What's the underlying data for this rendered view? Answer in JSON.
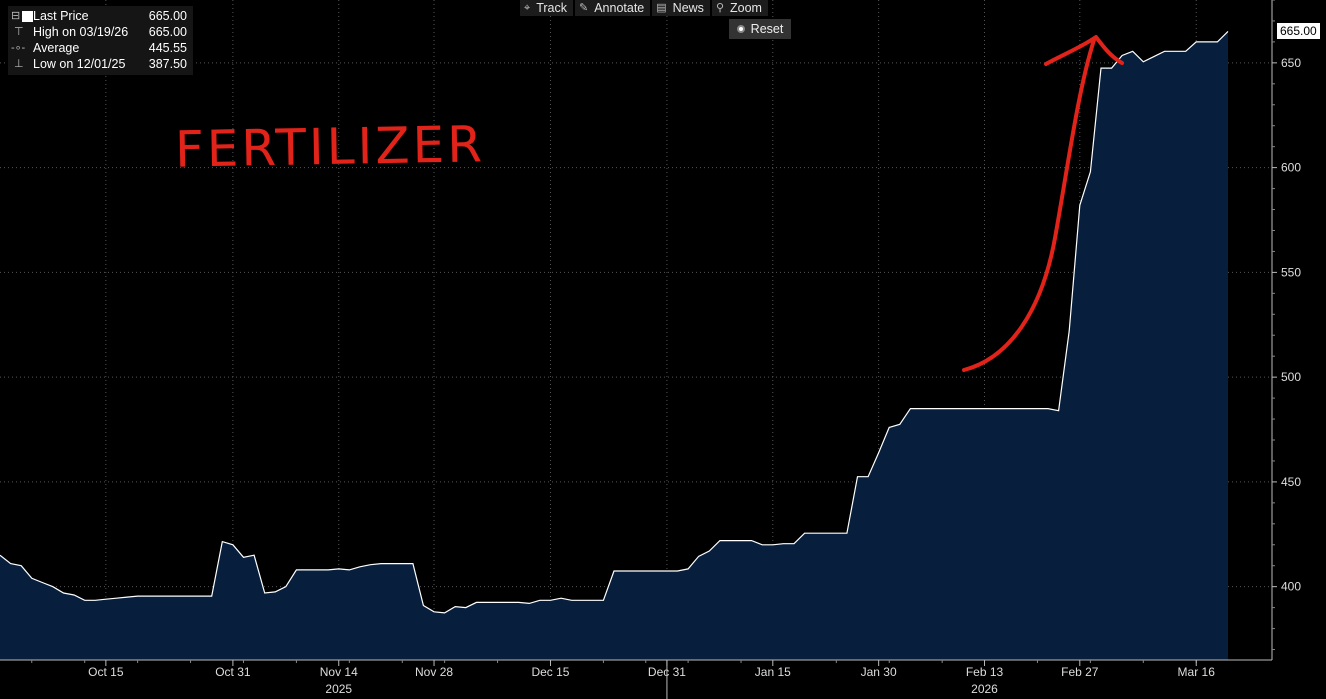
{
  "legend": {
    "rows": [
      {
        "icon": "white-square-icon",
        "label": "Last Price",
        "value": "665.00"
      },
      {
        "icon": "high-marker-icon",
        "label": "High on 03/19/26",
        "value": "665.00"
      },
      {
        "icon": "average-line-icon",
        "label": "Average",
        "value": "445.55"
      },
      {
        "icon": "low-marker-icon",
        "label": "Low on 12/01/25",
        "value": "387.50"
      }
    ]
  },
  "toolbar": {
    "track": "Track",
    "annotate": "Annotate",
    "news": "News",
    "zoom": "Zoom",
    "reset": "Reset"
  },
  "annotation": {
    "text": "FERTILIZER",
    "color": "#e2231a"
  },
  "last_price_tag": "665.00",
  "colors": {
    "background": "#000000",
    "area_fill": "#071f3d",
    "line": "#ffffff",
    "grid": "#555555"
  },
  "chart_data": {
    "type": "area",
    "title": "",
    "xlabel": "",
    "ylabel": "",
    "ylim": [
      365,
      680
    ],
    "yticks": [
      400,
      450,
      500,
      550,
      600,
      650
    ],
    "grid": true,
    "x_tick_labels": [
      "Oct 15",
      "Oct 31",
      "Nov 14",
      "Nov 28",
      "Dec 15",
      "Dec 31",
      "Jan 15",
      "Jan 30",
      "Feb 13",
      "Feb 27",
      "Mar 16"
    ],
    "x_ticks": [
      "2025-10-15",
      "2025-10-31",
      "2025-11-14",
      "2025-11-28",
      "2025-12-15",
      "2025-12-31",
      "2026-01-15",
      "2026-01-30",
      "2026-02-13",
      "2026-02-27",
      "2026-03-16"
    ],
    "year_labels": [
      {
        "x": "2025-11-14",
        "label": "2025"
      },
      {
        "x": "2026-02-13",
        "label": "2026"
      }
    ],
    "year_divider": "2025-12-31",
    "series": [
      {
        "points": [
          [
            "2025-10-01",
            415
          ],
          [
            "2025-10-02",
            411
          ],
          [
            "2025-10-03",
            410
          ],
          [
            "2025-10-06",
            404
          ],
          [
            "2025-10-07",
            402
          ],
          [
            "2025-10-08",
            400
          ],
          [
            "2025-10-09",
            397
          ],
          [
            "2025-10-10",
            396
          ],
          [
            "2025-10-13",
            393.5
          ],
          [
            "2025-10-14",
            393.5
          ],
          [
            "2025-10-15",
            394
          ],
          [
            "2025-10-16",
            394.5
          ],
          [
            "2025-10-17",
            395
          ],
          [
            "2025-10-20",
            395.5
          ],
          [
            "2025-10-21",
            395.5
          ],
          [
            "2025-10-22",
            395.5
          ],
          [
            "2025-10-23",
            395.5
          ],
          [
            "2025-10-24",
            395.5
          ],
          [
            "2025-10-27",
            395.5
          ],
          [
            "2025-10-28",
            395.5
          ],
          [
            "2025-10-29",
            395.5
          ],
          [
            "2025-10-30",
            421.5
          ],
          [
            "2025-10-31",
            420
          ],
          [
            "2025-11-03",
            414
          ],
          [
            "2025-11-04",
            415
          ],
          [
            "2025-11-05",
            397
          ],
          [
            "2025-11-06",
            397.5
          ],
          [
            "2025-11-07",
            400
          ],
          [
            "2025-11-10",
            408
          ],
          [
            "2025-11-11",
            408
          ],
          [
            "2025-11-12",
            408
          ],
          [
            "2025-11-13",
            408
          ],
          [
            "2025-11-14",
            408.5
          ],
          [
            "2025-11-17",
            408
          ],
          [
            "2025-11-18",
            409.5
          ],
          [
            "2025-11-19",
            410.5
          ],
          [
            "2025-11-20",
            411
          ],
          [
            "2025-11-21",
            411
          ],
          [
            "2025-11-24",
            411
          ],
          [
            "2025-11-25",
            411
          ],
          [
            "2025-11-26",
            391
          ],
          [
            "2025-11-28",
            388
          ],
          [
            "2025-12-01",
            387.5
          ],
          [
            "2025-12-02",
            390.5
          ],
          [
            "2025-12-03",
            390
          ],
          [
            "2025-12-04",
            392.5
          ],
          [
            "2025-12-05",
            392.5
          ],
          [
            "2025-12-08",
            392.5
          ],
          [
            "2025-12-09",
            392.5
          ],
          [
            "2025-12-10",
            392.5
          ],
          [
            "2025-12-11",
            392
          ],
          [
            "2025-12-12",
            393.5
          ],
          [
            "2025-12-15",
            393.5
          ],
          [
            "2025-12-16",
            394.5
          ],
          [
            "2025-12-17",
            393.5
          ],
          [
            "2025-12-18",
            393.5
          ],
          [
            "2025-12-19",
            393.5
          ],
          [
            "2025-12-22",
            393.5
          ],
          [
            "2025-12-23",
            407.5
          ],
          [
            "2025-12-24",
            407.5
          ],
          [
            "2025-12-26",
            407.5
          ],
          [
            "2025-12-29",
            407.5
          ],
          [
            "2025-12-30",
            407.5
          ],
          [
            "2025-12-31",
            407.5
          ],
          [
            "2026-01-02",
            407.5
          ],
          [
            "2026-01-05",
            408.5
          ],
          [
            "2026-01-06",
            414.5
          ],
          [
            "2026-01-07",
            417
          ],
          [
            "2026-01-08",
            422
          ],
          [
            "2026-01-09",
            422
          ],
          [
            "2026-01-12",
            422
          ],
          [
            "2026-01-13",
            422
          ],
          [
            "2026-01-14",
            420
          ],
          [
            "2026-01-15",
            420
          ],
          [
            "2026-01-16",
            420.5
          ],
          [
            "2026-01-20",
            420.5
          ],
          [
            "2026-01-21",
            425.5
          ],
          [
            "2026-01-22",
            425.5
          ],
          [
            "2026-01-23",
            425.5
          ],
          [
            "2026-01-26",
            425.5
          ],
          [
            "2026-01-27",
            425.5
          ],
          [
            "2026-01-28",
            452.5
          ],
          [
            "2026-01-29",
            452.5
          ],
          [
            "2026-01-30",
            464
          ],
          [
            "2026-02-02",
            476
          ],
          [
            "2026-02-03",
            477.5
          ],
          [
            "2026-02-04",
            485
          ],
          [
            "2026-02-05",
            485
          ],
          [
            "2026-02-06",
            485
          ],
          [
            "2026-02-09",
            485
          ],
          [
            "2026-02-10",
            485
          ],
          [
            "2026-02-11",
            485
          ],
          [
            "2026-02-12",
            485
          ],
          [
            "2026-02-13",
            485
          ],
          [
            "2026-02-17",
            485
          ],
          [
            "2026-02-18",
            485
          ],
          [
            "2026-02-19",
            485
          ],
          [
            "2026-02-20",
            485
          ],
          [
            "2026-02-23",
            485
          ],
          [
            "2026-02-24",
            485
          ],
          [
            "2026-02-25",
            484
          ],
          [
            "2026-02-26",
            522
          ],
          [
            "2026-02-27",
            582
          ],
          [
            "2026-03-02",
            598
          ],
          [
            "2026-03-03",
            647.5
          ],
          [
            "2026-03-04",
            647.5
          ],
          [
            "2026-03-05",
            653.5
          ],
          [
            "2026-03-06",
            655.5
          ],
          [
            "2026-03-09",
            650.5
          ],
          [
            "2026-03-10",
            653
          ],
          [
            "2026-03-11",
            655.5
          ],
          [
            "2026-03-12",
            655.5
          ],
          [
            "2026-03-13",
            655.5
          ],
          [
            "2026-03-16",
            660
          ],
          [
            "2026-03-17",
            660
          ],
          [
            "2026-03-18",
            660
          ],
          [
            "2026-03-19",
            665
          ]
        ]
      }
    ]
  }
}
